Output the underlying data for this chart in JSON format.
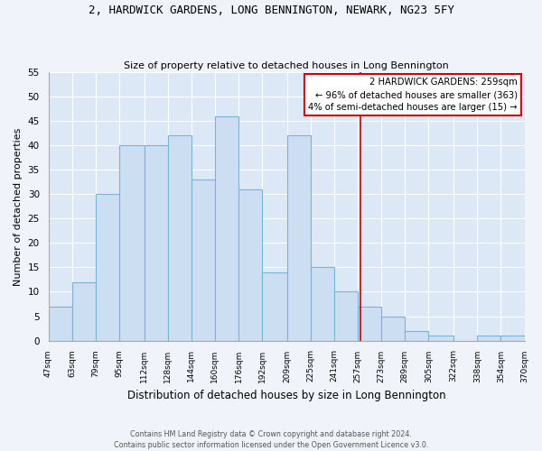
{
  "title": "2, HARDWICK GARDENS, LONG BENNINGTON, NEWARK, NG23 5FY",
  "subtitle": "Size of property relative to detached houses in Long Bennington",
  "xlabel": "Distribution of detached houses by size in Long Bennington",
  "ylabel": "Number of detached properties",
  "bar_color": "#ccdff2",
  "bar_edge_color": "#7ab3d8",
  "background_color": "#dce8f5",
  "grid_color": "#ffffff",
  "bin_edges": [
    47,
    63,
    79,
    95,
    112,
    128,
    144,
    160,
    176,
    192,
    209,
    225,
    241,
    257,
    273,
    289,
    305,
    322,
    338,
    354,
    370
  ],
  "bin_labels": [
    "47sqm",
    "63sqm",
    "79sqm",
    "95sqm",
    "112sqm",
    "128sqm",
    "144sqm",
    "160sqm",
    "176sqm",
    "192sqm",
    "209sqm",
    "225sqm",
    "241sqm",
    "257sqm",
    "273sqm",
    "289sqm",
    "305sqm",
    "322sqm",
    "338sqm",
    "354sqm",
    "370sqm"
  ],
  "counts": [
    7,
    12,
    30,
    40,
    40,
    42,
    33,
    46,
    31,
    14,
    42,
    15,
    10,
    7,
    5,
    2,
    1,
    0,
    1,
    1
  ],
  "vline_x": 259,
  "vline_color": "#cc0000",
  "annotation_line1": "2 HARDWICK GARDENS: 259sqm",
  "annotation_line2": "← 96% of detached houses are smaller (363)",
  "annotation_line3": "4% of semi-detached houses are larger (15) →",
  "ylim": [
    0,
    55
  ],
  "yticks": [
    0,
    5,
    10,
    15,
    20,
    25,
    30,
    35,
    40,
    45,
    50,
    55
  ],
  "footer_line1": "Contains HM Land Registry data © Crown copyright and database right 2024.",
  "footer_line2": "Contains public sector information licensed under the Open Government Licence v3.0."
}
